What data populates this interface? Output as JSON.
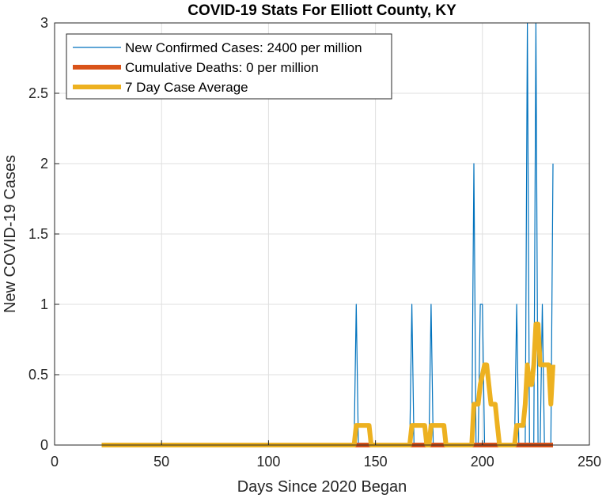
{
  "chart_data": {
    "type": "line",
    "title": "COVID-19 Stats For Elliott County, KY",
    "xlabel": "Days Since 2020 Began",
    "ylabel": "New COVID-19 Cases",
    "xlim": [
      0,
      250
    ],
    "ylim": [
      0,
      3
    ],
    "xticks": [
      "0",
      "50",
      "100",
      "150",
      "200",
      "250"
    ],
    "yticks": [
      "0",
      "0.5",
      "1",
      "1.5",
      "2",
      "2.5",
      "3"
    ],
    "grid": true,
    "legend_position": "top-left",
    "series": [
      {
        "name": "New Confirmed Cases: 2400 per million",
        "color": "#0072BD",
        "x": [
          22,
          140,
          141,
          142,
          166,
          167,
          168,
          175,
          176,
          177,
          195,
          196,
          197,
          198,
          199,
          200,
          201,
          215,
          216,
          217,
          219,
          220,
          221,
          222,
          223,
          224,
          225,
          226,
          227,
          228,
          229,
          230,
          231,
          232,
          233
        ],
        "y": [
          0,
          0,
          1,
          0,
          0,
          1,
          0,
          0,
          1,
          0,
          0,
          2,
          0,
          0,
          1,
          1,
          0,
          0,
          1,
          0,
          0,
          0,
          3,
          0,
          0,
          0,
          3,
          0,
          0,
          1,
          0,
          0,
          0,
          0,
          2
        ]
      },
      {
        "name": "Cumulative Deaths: 0 per million",
        "color": "#D95319",
        "x": [
          22,
          233
        ],
        "y": [
          0,
          0
        ]
      },
      {
        "name": "7 Day Case Average",
        "color": "#EDB120",
        "x": [
          22,
          140,
          141,
          147,
          148,
          166,
          167,
          173,
          174,
          175,
          176,
          182,
          183,
          195,
          196,
          198,
          199,
          201,
          202,
          204,
          205,
          206,
          207,
          208,
          215,
          216,
          219,
          220,
          221,
          222,
          223,
          224,
          225,
          226,
          227,
          228,
          229,
          231,
          232,
          233
        ],
        "y": [
          0,
          0,
          0.14,
          0.14,
          0,
          0,
          0.14,
          0.14,
          0,
          0,
          0.14,
          0.14,
          0,
          0,
          0.29,
          0.29,
          0.43,
          0.57,
          0.57,
          0.29,
          0.29,
          0.29,
          0.14,
          0,
          0,
          0.14,
          0.14,
          0.29,
          0.57,
          0.43,
          0.43,
          0.57,
          0.86,
          0.86,
          0.57,
          0.57,
          0.57,
          0.57,
          0.29,
          0.57
        ]
      }
    ]
  }
}
